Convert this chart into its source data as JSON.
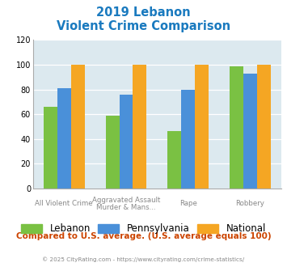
{
  "title_line1": "2019 Lebanon",
  "title_line2": "Violent Crime Comparison",
  "title_color": "#1a7abf",
  "series": {
    "Lebanon": [
      66,
      59,
      46,
      99
    ],
    "Pennsylvania": [
      81,
      76,
      80,
      93
    ],
    "National": [
      100,
      100,
      100,
      100
    ]
  },
  "colors": {
    "Lebanon": "#7ac143",
    "Pennsylvania": "#4a90d9",
    "National": "#f5a623"
  },
  "ax_labels_line1": [
    "All Violent Crime",
    "Aggravated Assault",
    "Rape",
    "Robbery"
  ],
  "ax_labels_line2": [
    "",
    "Murder & Mans...",
    "",
    ""
  ],
  "ylim": [
    0,
    120
  ],
  "yticks": [
    0,
    20,
    40,
    60,
    80,
    100,
    120
  ],
  "plot_bg": "#dce9ef",
  "footer_text": "Compared to U.S. average. (U.S. average equals 100)",
  "footer_color": "#cc4400",
  "copyright_text": "© 2025 CityRating.com - https://www.cityrating.com/crime-statistics/",
  "copyright_color": "#888888",
  "bar_width": 0.22
}
